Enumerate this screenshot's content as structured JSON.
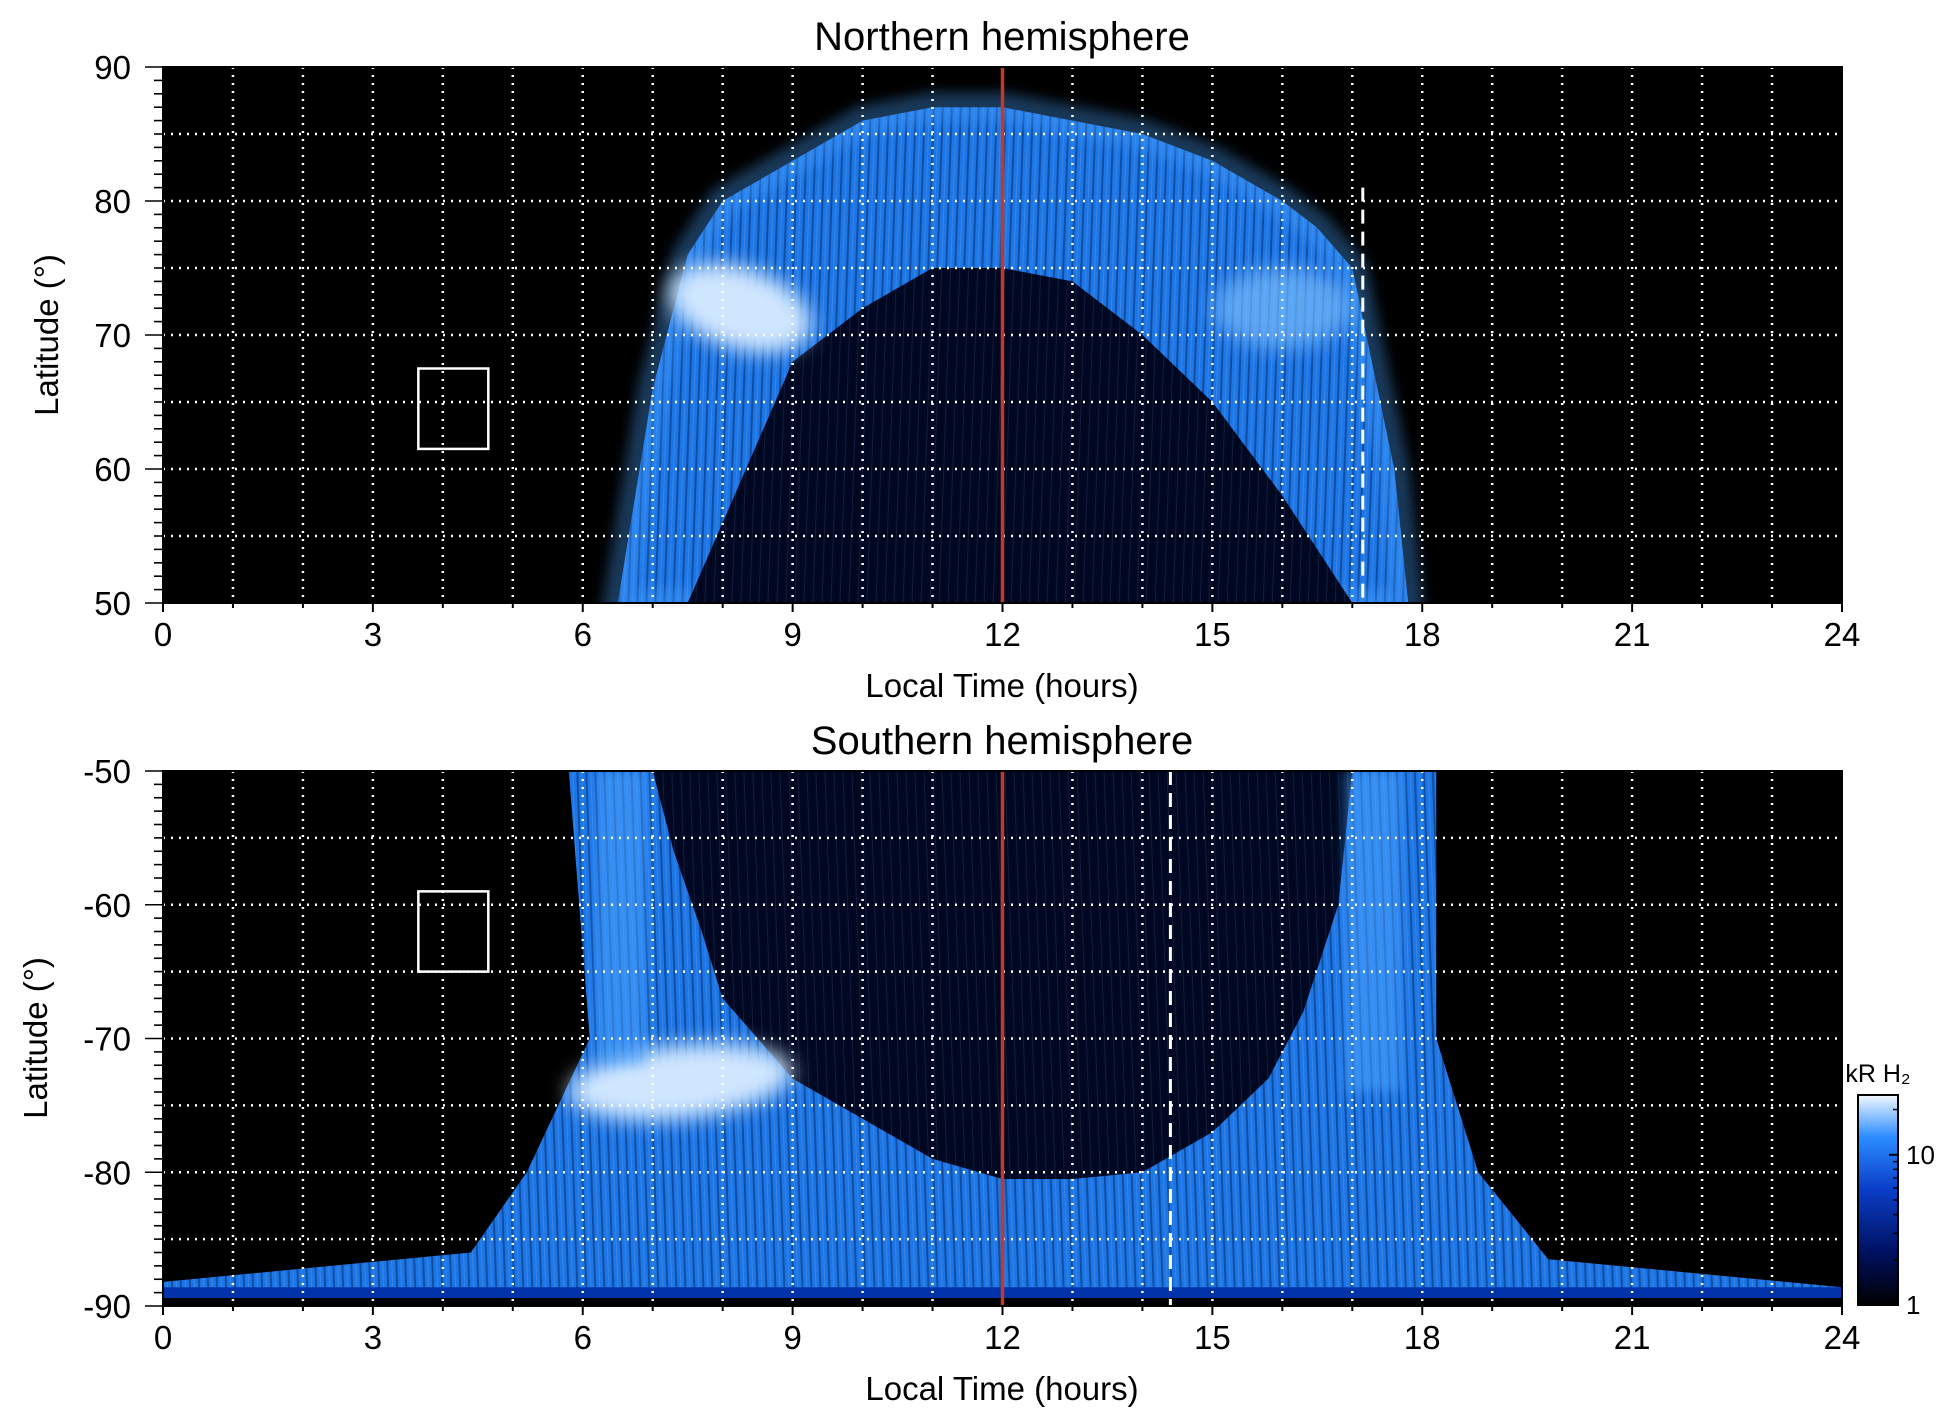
{
  "chart_data": [
    {
      "type": "heatmap",
      "title": "Northern hemisphere",
      "xlabel": "Local Time (hours)",
      "ylabel": "Latitude (°)",
      "xlim": [
        0,
        24
      ],
      "ylim": [
        50,
        90
      ],
      "x_ticks": [
        0,
        3,
        6,
        9,
        12,
        15,
        18,
        21,
        24
      ],
      "y_ticks": [
        50,
        60,
        70,
        80,
        90
      ],
      "grid": true,
      "grid_x_step": 1,
      "grid_y_step": 5,
      "noon_line_x": 12,
      "dashed_line_x": 17.15,
      "dashed_line_ylim": [
        50,
        81
      ],
      "reference_box": {
        "x": [
          3.65,
          4.65
        ],
        "y": [
          61.5,
          67.5
        ]
      },
      "auroral_oval": {
        "coverage_lt": [
          6.5,
          17.8
        ],
        "boundary_lt": [
          6.5,
          7.0,
          7.5,
          8.0,
          9.0,
          10.0,
          11.0,
          12.0,
          13.0,
          14.0,
          15.0,
          16.0,
          16.5,
          17.0,
          17.6,
          17.8
        ],
        "outer_top_lat": [
          50,
          66,
          76,
          80,
          83,
          86,
          87,
          87,
          86,
          85,
          83,
          80,
          78,
          75,
          60,
          50
        ],
        "inner_lat": [
          50,
          50,
          50,
          56,
          68,
          72,
          75,
          75,
          74,
          70,
          65,
          58,
          54,
          50,
          50,
          50
        ],
        "bright_spot": {
          "lt": [
            7.2,
            9.3
          ],
          "lat": [
            69,
            75
          ]
        },
        "secondary_bright": {
          "lt": [
            15.0,
            17.0
          ],
          "lat": [
            69,
            75
          ]
        }
      }
    },
    {
      "type": "heatmap",
      "title": "Southern hemisphere",
      "xlabel": "Local Time (hours)",
      "ylabel": "Latitude (°)",
      "xlim": [
        0,
        24
      ],
      "ylim": [
        -90,
        -50
      ],
      "x_ticks": [
        0,
        3,
        6,
        9,
        12,
        15,
        18,
        21,
        24
      ],
      "y_ticks": [
        -90,
        -80,
        -70,
        -60,
        -50
      ],
      "grid": true,
      "grid_x_step": 1,
      "grid_y_step": 5,
      "noon_line_x": 12,
      "dashed_line_x": 14.4,
      "dashed_line_ylim": [
        -91,
        -50
      ],
      "reference_box": {
        "x": [
          3.65,
          4.65
        ],
        "y": [
          -65,
          -59
        ]
      },
      "auroral_oval": {
        "coverage_lt": [
          4.4,
          19.8
        ],
        "outer_lat_boundary": -90,
        "inner_boundary_lt": [
          7.0,
          7.3,
          7.7,
          8.0,
          8.5,
          9.0,
          10.0,
          11.0,
          12.0,
          13.0,
          14.0,
          15.0,
          15.8,
          16.3,
          16.8,
          17.0
        ],
        "inner_boundary_lat": [
          -50,
          -56,
          -62,
          -67,
          -70,
          -73,
          -76,
          -79,
          -80.5,
          -80.5,
          -80,
          -77,
          -73,
          -68,
          -60,
          -50
        ],
        "left_wall_lt": [
          6.0,
          7.0
        ],
        "right_wall_lt": [
          17.0,
          18.2
        ],
        "bright_spot": {
          "lt": [
            5.8,
            9.0
          ],
          "lat": [
            -76,
            -70.5
          ]
        }
      }
    }
  ],
  "colorbar": {
    "label": "kR H₂",
    "ticks": [
      "1",
      "10"
    ],
    "tick_values": [
      1,
      10
    ],
    "range": [
      1,
      25
    ],
    "scale": "log"
  },
  "colors": {
    "background": "#000000",
    "oval_dim": "#0033aa",
    "oval_mid": "#1f7cf2",
    "oval_bright": "#cfe6ff",
    "noon_line": "#c0392b",
    "grid": "#ffffff"
  }
}
